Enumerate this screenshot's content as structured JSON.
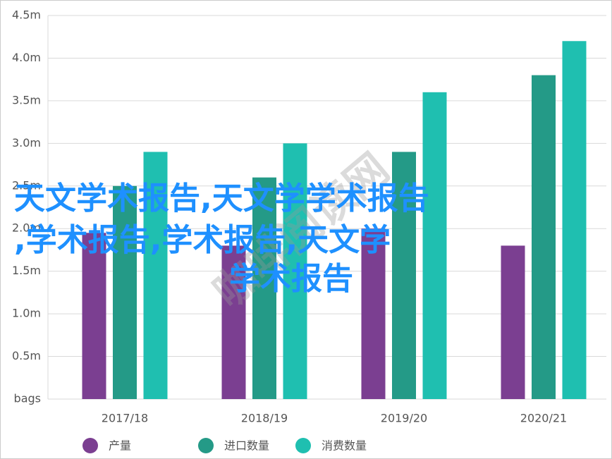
{
  "chart_data": {
    "type": "bar",
    "categories": [
      "2017/18",
      "2018/19",
      "2019/20",
      "2020/21"
    ],
    "series": [
      {
        "name": "产量",
        "color": "#7b3f91",
        "values": [
          1.95,
          1.8,
          2.0,
          1.8
        ]
      },
      {
        "name": "进口数量",
        "color": "#249a87",
        "values": [
          2.5,
          2.6,
          2.9,
          3.8
        ]
      },
      {
        "name": "消费数量",
        "color": "#1fbfb0",
        "values": [
          2.9,
          3.0,
          3.6,
          4.2
        ]
      }
    ],
    "ylim": [
      0,
      4.5
    ],
    "yticks": [
      {
        "value": 0,
        "label": "bags"
      },
      {
        "value": 0.5,
        "label": "0.5m"
      },
      {
        "value": 1,
        "label": "1.0m"
      },
      {
        "value": 1.5,
        "label": "1.5m"
      },
      {
        "value": 2,
        "label": "2.0m"
      },
      {
        "value": 2.5,
        "label": "2.5m"
      },
      {
        "value": 3,
        "label": "3.0m"
      },
      {
        "value": 3.5,
        "label": "3.5m"
      },
      {
        "value": 4,
        "label": "4.0m"
      },
      {
        "value": 4.5,
        "label": "4.5m"
      }
    ],
    "grid": true,
    "legend": "bottom",
    "annotations": [
      "天文学术报告,天文学学术报告",
      ",学术报告,学术报告,天文学",
      "学术报告",
      "咖啡阅读网"
    ]
  }
}
